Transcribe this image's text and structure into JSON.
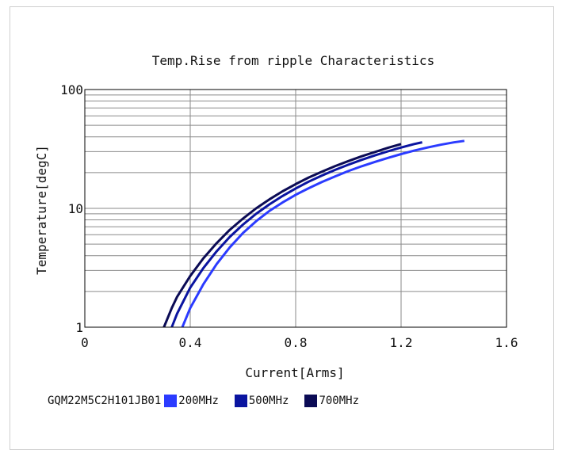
{
  "chart_data": {
    "type": "line",
    "title": "Temp.Rise from ripple Characteristics",
    "xlabel": "Current[Arms]",
    "ylabel": "Temperature[degC]",
    "xlim": [
      0,
      1.6
    ],
    "ylim": [
      1,
      100
    ],
    "yscale": "log",
    "grid": true,
    "x_ticks": [
      "0",
      "0.4",
      "0.8",
      "1.2",
      "1.6"
    ],
    "y_ticks": [
      "1",
      "10",
      "100"
    ],
    "legend_position": "bottom-left",
    "product_label": "GQM22M5C2H101JB01",
    "series": [
      {
        "name": "200MHz",
        "color": "#2b3bff",
        "points": [
          [
            0.37,
            1.0
          ],
          [
            0.4,
            1.45
          ],
          [
            0.45,
            2.3
          ],
          [
            0.5,
            3.4
          ],
          [
            0.55,
            4.7
          ],
          [
            0.6,
            6.2
          ],
          [
            0.65,
            7.8
          ],
          [
            0.7,
            9.5
          ],
          [
            0.75,
            11.2
          ],
          [
            0.8,
            13.0
          ],
          [
            0.85,
            14.8
          ],
          [
            0.9,
            16.7
          ],
          [
            0.95,
            18.6
          ],
          [
            1.0,
            20.6
          ],
          [
            1.05,
            22.6
          ],
          [
            1.1,
            24.6
          ],
          [
            1.15,
            26.6
          ],
          [
            1.2,
            28.6
          ],
          [
            1.25,
            30.6
          ],
          [
            1.3,
            32.5
          ],
          [
            1.35,
            34.3
          ],
          [
            1.4,
            35.9
          ],
          [
            1.44,
            37.0
          ]
        ]
      },
      {
        "name": "500MHz",
        "color": "#0a14a0",
        "points": [
          [
            0.33,
            1.0
          ],
          [
            0.35,
            1.3
          ],
          [
            0.4,
            2.15
          ],
          [
            0.45,
            3.15
          ],
          [
            0.5,
            4.35
          ],
          [
            0.55,
            5.75
          ],
          [
            0.6,
            7.3
          ],
          [
            0.65,
            9.0
          ],
          [
            0.7,
            10.8
          ],
          [
            0.75,
            12.7
          ],
          [
            0.8,
            14.7
          ],
          [
            0.85,
            16.8
          ],
          [
            0.9,
            18.9
          ],
          [
            0.95,
            21.1
          ],
          [
            1.0,
            23.3
          ],
          [
            1.05,
            25.6
          ],
          [
            1.1,
            27.9
          ],
          [
            1.15,
            30.2
          ],
          [
            1.2,
            32.5
          ],
          [
            1.25,
            34.8
          ],
          [
            1.28,
            36.0
          ]
        ]
      },
      {
        "name": "700MHz",
        "color": "#0b0b55",
        "points": [
          [
            0.3,
            1.0
          ],
          [
            0.33,
            1.45
          ],
          [
            0.35,
            1.8
          ],
          [
            0.4,
            2.7
          ],
          [
            0.45,
            3.8
          ],
          [
            0.5,
            5.1
          ],
          [
            0.55,
            6.6
          ],
          [
            0.6,
            8.2
          ],
          [
            0.65,
            10.0
          ],
          [
            0.7,
            11.9
          ],
          [
            0.75,
            13.9
          ],
          [
            0.8,
            16.0
          ],
          [
            0.85,
            18.2
          ],
          [
            0.9,
            20.4
          ],
          [
            0.95,
            22.7
          ],
          [
            1.0,
            25.0
          ],
          [
            1.05,
            27.4
          ],
          [
            1.1,
            29.8
          ],
          [
            1.15,
            32.3
          ],
          [
            1.2,
            34.8
          ]
        ]
      }
    ]
  }
}
